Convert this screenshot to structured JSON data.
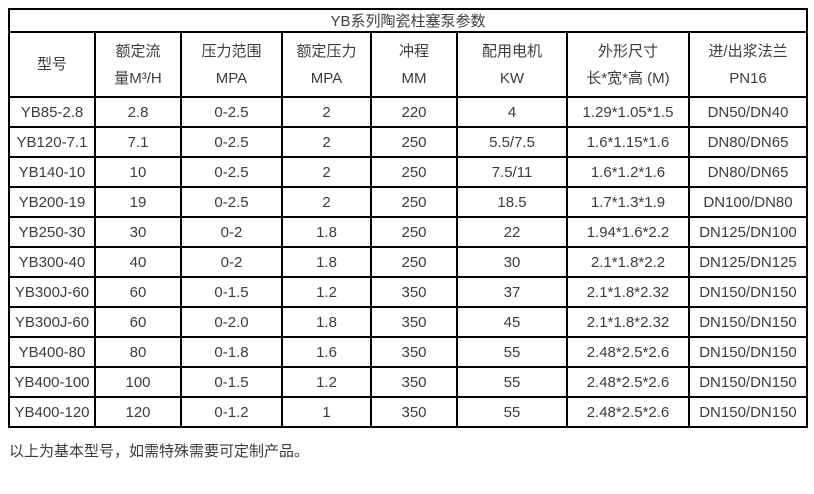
{
  "table": {
    "title": "YB系列陶瓷柱塞泵参数",
    "header_rows": [
      [
        "型号"
      ],
      [
        "额定流",
        "量M³/H"
      ],
      [
        "压力范围",
        "MPA"
      ],
      [
        "额定压力",
        "MPA"
      ],
      [
        "冲程",
        "MM"
      ],
      [
        "配用电机",
        "KW"
      ],
      [
        "外形尺寸",
        "长*宽*高 (M)"
      ],
      [
        "进/出浆法兰",
        "PN16"
      ]
    ],
    "column_keys": [
      "model",
      "rated_flow_m3h",
      "pressure_range_mpa",
      "rated_pressure_mpa",
      "stroke_mm",
      "motor_kw",
      "dimensions_lwh_m",
      "flange_pn16"
    ],
    "rows": [
      [
        "YB85-2.8",
        "2.8",
        "0-2.5",
        "2",
        "220",
        "4",
        "1.29*1.05*1.5",
        "DN50/DN40"
      ],
      [
        "YB120-7.1",
        "7.1",
        "0-2.5",
        "2",
        "250",
        "5.5/7.5",
        "1.6*1.15*1.6",
        "DN80/DN65"
      ],
      [
        "YB140-10",
        "10",
        "0-2.5",
        "2",
        "250",
        "7.5/11",
        "1.6*1.2*1.6",
        "DN80/DN65"
      ],
      [
        "YB200-19",
        "19",
        "0-2.5",
        "2",
        "250",
        "18.5",
        "1.7*1.3*1.9",
        "DN100/DN80"
      ],
      [
        "YB250-30",
        "30",
        "0-2",
        "1.8",
        "250",
        "22",
        "1.94*1.6*2.2",
        "DN125/DN100"
      ],
      [
        "YB300-40",
        "40",
        "0-2",
        "1.8",
        "250",
        "30",
        "2.1*1.8*2.2",
        "DN125/DN125"
      ],
      [
        "YB300J-60",
        "60",
        "0-1.5",
        "1.2",
        "350",
        "37",
        "2.1*1.8*2.32",
        "DN150/DN150"
      ],
      [
        "YB300J-60",
        "60",
        "0-2.0",
        "1.8",
        "350",
        "45",
        "2.1*1.8*2.32",
        "DN150/DN150"
      ],
      [
        "YB400-80",
        "80",
        "0-1.8",
        "1.6",
        "350",
        "55",
        "2.48*2.5*2.6",
        "DN150/DN150"
      ],
      [
        "YB400-100",
        "100",
        "0-1.5",
        "1.2",
        "350",
        "55",
        "2.48*2.5*2.6",
        "DN150/DN150"
      ],
      [
        "YB400-120",
        "120",
        "0-1.2",
        "1",
        "350",
        "55",
        "2.48*2.5*2.6",
        "DN150/DN150"
      ]
    ],
    "footer_note": "以上为基本型号，如需特殊需要可定制产品。"
  },
  "colors": {
    "border": "#000000",
    "text": "#3d3d3d",
    "background": "#ffffff"
  }
}
